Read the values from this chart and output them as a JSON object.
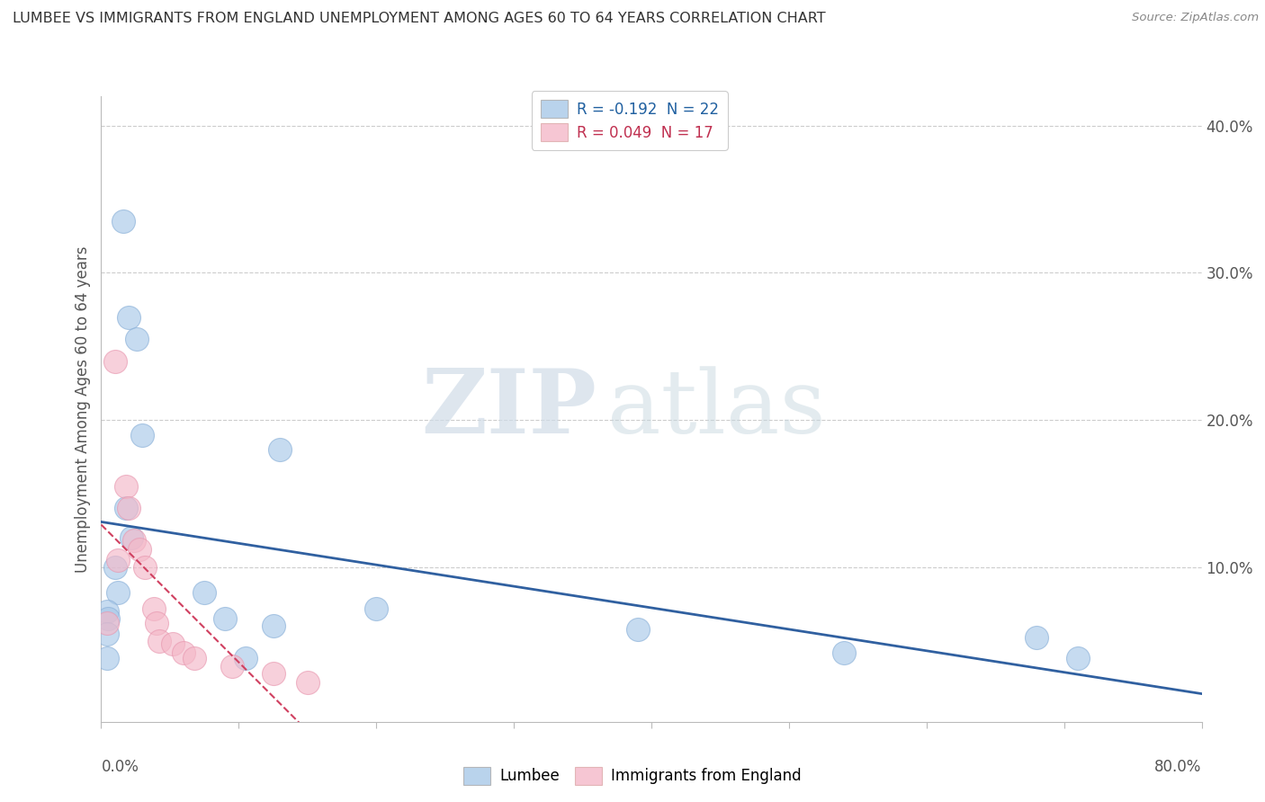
{
  "title": "LUMBEE VS IMMIGRANTS FROM ENGLAND UNEMPLOYMENT AMONG AGES 60 TO 64 YEARS CORRELATION CHART",
  "source": "Source: ZipAtlas.com",
  "ylabel": "Unemployment Among Ages 60 to 64 years",
  "xlim": [
    0,
    0.8
  ],
  "ylim": [
    -0.005,
    0.42
  ],
  "legend_lumbee": "Lumbee",
  "legend_immigrants": "Immigrants from England",
  "R_lumbee": -0.192,
  "N_lumbee": 22,
  "R_immigrants": 0.049,
  "N_immigrants": 17,
  "lumbee_color": "#a8c8e8",
  "immigrants_color": "#f4b8c8",
  "lumbee_line_color": "#3060a0",
  "immigrants_line_color": "#d04060",
  "lumbee_x": [
    0.016,
    0.02,
    0.026,
    0.03,
    0.018,
    0.022,
    0.01,
    0.012,
    0.004,
    0.005,
    0.004,
    0.004,
    0.075,
    0.09,
    0.105,
    0.13,
    0.125,
    0.2,
    0.39,
    0.54,
    0.68,
    0.71
  ],
  "lumbee_y": [
    0.335,
    0.27,
    0.255,
    0.19,
    0.14,
    0.12,
    0.1,
    0.083,
    0.07,
    0.065,
    0.055,
    0.038,
    0.083,
    0.065,
    0.038,
    0.18,
    0.06,
    0.072,
    0.058,
    0.042,
    0.052,
    0.038
  ],
  "immigrants_x": [
    0.004,
    0.01,
    0.012,
    0.018,
    0.02,
    0.024,
    0.028,
    0.032,
    0.038,
    0.04,
    0.042,
    0.052,
    0.06,
    0.068,
    0.095,
    0.125,
    0.15
  ],
  "immigrants_y": [
    0.062,
    0.24,
    0.105,
    0.155,
    0.14,
    0.118,
    0.112,
    0.1,
    0.072,
    0.062,
    0.05,
    0.048,
    0.042,
    0.038,
    0.033,
    0.028,
    0.022
  ],
  "watermark_zip": "ZIP",
  "watermark_atlas": "atlas",
  "background_color": "#ffffff",
  "grid_color": "#cccccc",
  "ytick_values": [
    0.1,
    0.2,
    0.3,
    0.4
  ],
  "ytick_labels": [
    "10.0%",
    "20.0%",
    "30.0%",
    "40.0%"
  ]
}
